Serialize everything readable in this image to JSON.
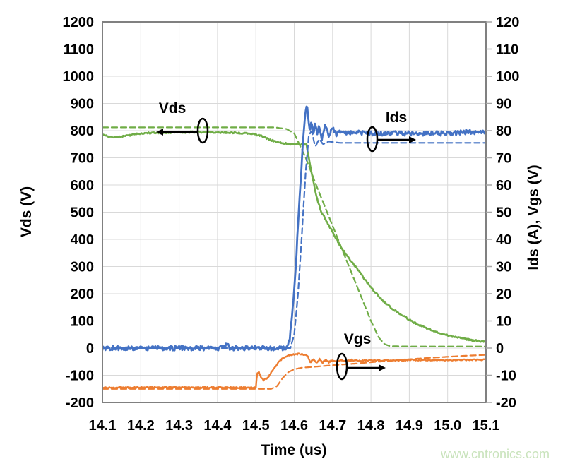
{
  "page": {
    "background": "#ffffff"
  },
  "watermark": {
    "text": "www.cntronics.com",
    "color": "#c9e3bc"
  },
  "style": {
    "grid_color": "#d9d9d9",
    "border_color": "#808080",
    "tick_color": "#a6a6a6",
    "text_color": "#000000",
    "vds_color": "#70AD47",
    "ids_color": "#4472C4",
    "vgs_color": "#ED7D31"
  },
  "chart_data": {
    "type": "line",
    "title": "",
    "xlabel": "Time (us)",
    "ylabel_left": "Vds (V)",
    "ylabel_right": "Ids (A), Vgs (V)",
    "x_range": [
      14.1,
      15.1
    ],
    "y_left_range": [
      -200,
      1200
    ],
    "y_right_range": [
      -20,
      120
    ],
    "grid": true,
    "x_ticks": [
      "14.1",
      "14.2",
      "14.3",
      "14.4",
      "14.5",
      "14.6",
      "14.7",
      "14.8",
      "14.9",
      "15.0",
      "15.1"
    ],
    "y_left_ticks": [
      "1200",
      "1100",
      "1000",
      "900",
      "800",
      "700",
      "600",
      "500",
      "400",
      "300",
      "200",
      "100",
      "0",
      "-100",
      "-200"
    ],
    "y_right_ticks": [
      "120",
      "110",
      "100",
      "90",
      "80",
      "70",
      "60",
      "50",
      "40",
      "30",
      "20",
      "10",
      "0",
      "-10",
      "-20"
    ],
    "series": [
      {
        "name": "Vds solid",
        "signal": "vds",
        "axis": "left",
        "style": "solid",
        "color": "#70AD47",
        "width": 2.6,
        "noise": 3,
        "points": [
          [
            14.1,
            786
          ],
          [
            14.12,
            776
          ],
          [
            14.14,
            776
          ],
          [
            14.17,
            783
          ],
          [
            14.2,
            790
          ],
          [
            14.25,
            793
          ],
          [
            14.3,
            794
          ],
          [
            14.35,
            795
          ],
          [
            14.4,
            794
          ],
          [
            14.44,
            792
          ],
          [
            14.48,
            790
          ],
          [
            14.51,
            783
          ],
          [
            14.53,
            770
          ],
          [
            14.55,
            760
          ],
          [
            14.57,
            753
          ],
          [
            14.6,
            750
          ],
          [
            14.62,
            751
          ],
          [
            14.632,
            748
          ],
          [
            14.638,
            700
          ],
          [
            14.644,
            655
          ],
          [
            14.652,
            598
          ],
          [
            14.66,
            548
          ],
          [
            14.67,
            505
          ],
          [
            14.686,
            462
          ],
          [
            14.7,
            428
          ],
          [
            14.72,
            375
          ],
          [
            14.748,
            320
          ],
          [
            14.77,
            280
          ],
          [
            14.787,
            247
          ],
          [
            14.81,
            207
          ],
          [
            14.833,
            171
          ],
          [
            14.86,
            140
          ],
          [
            14.886,
            117
          ],
          [
            14.91,
            95
          ],
          [
            14.938,
            78
          ],
          [
            14.96,
            64
          ],
          [
            14.987,
            52
          ],
          [
            15.01,
            44
          ],
          [
            15.04,
            35
          ],
          [
            15.07,
            28
          ],
          [
            15.1,
            24
          ]
        ]
      },
      {
        "name": "Vds dashed",
        "signal": "vds",
        "axis": "left",
        "style": "dashed",
        "color": "#70AD47",
        "width": 2.2,
        "noise": 0,
        "points": [
          [
            14.1,
            812
          ],
          [
            14.55,
            812
          ],
          [
            14.58,
            806
          ],
          [
            14.6,
            790
          ],
          [
            14.63,
            700
          ],
          [
            14.66,
            590
          ],
          [
            14.7,
            450
          ],
          [
            14.74,
            310
          ],
          [
            14.78,
            170
          ],
          [
            14.8,
            100
          ],
          [
            14.82,
            40
          ],
          [
            14.835,
            15
          ],
          [
            14.85,
            7
          ],
          [
            14.9,
            6
          ],
          [
            15.1,
            6
          ]
        ]
      },
      {
        "name": "Ids solid",
        "signal": "ids",
        "axis": "right",
        "style": "solid",
        "color": "#4472C4",
        "width": 2.8,
        "noise": 0.85,
        "points": [
          [
            14.1,
            0
          ],
          [
            14.42,
            0
          ],
          [
            14.425,
            2.5
          ],
          [
            14.43,
            0
          ],
          [
            14.58,
            0
          ],
          [
            14.588,
            3
          ],
          [
            14.595,
            12
          ],
          [
            14.603,
            28
          ],
          [
            14.61,
            45
          ],
          [
            14.617,
            62
          ],
          [
            14.624,
            78
          ],
          [
            14.63,
            88
          ],
          [
            14.633,
            90
          ],
          [
            14.637,
            84
          ],
          [
            14.64,
            80
          ],
          [
            14.645,
            83
          ],
          [
            14.65,
            79
          ],
          [
            14.655,
            83
          ],
          [
            14.66,
            78
          ],
          [
            14.665,
            82
          ],
          [
            14.672,
            77
          ],
          [
            14.68,
            82
          ],
          [
            14.69,
            78
          ],
          [
            14.7,
            81
          ],
          [
            14.71,
            78.5
          ],
          [
            14.72,
            80
          ],
          [
            14.73,
            79
          ],
          [
            14.75,
            79.5
          ],
          [
            14.8,
            79
          ],
          [
            14.9,
            79
          ],
          [
            15.0,
            79
          ],
          [
            15.05,
            79.5
          ],
          [
            15.1,
            79.5
          ]
        ]
      },
      {
        "name": "Ids dashed",
        "signal": "ids",
        "axis": "right",
        "style": "dashed",
        "color": "#4472C4",
        "width": 2.2,
        "noise": 0,
        "points": [
          [
            14.1,
            0
          ],
          [
            14.59,
            0
          ],
          [
            14.6,
            5
          ],
          [
            14.61,
            20
          ],
          [
            14.62,
            42
          ],
          [
            14.63,
            65
          ],
          [
            14.638,
            78
          ],
          [
            14.645,
            80
          ],
          [
            14.655,
            74
          ],
          [
            14.665,
            77
          ],
          [
            14.675,
            75
          ],
          [
            14.69,
            76
          ],
          [
            14.72,
            75.5
          ],
          [
            14.8,
            75.5
          ],
          [
            15.1,
            75.5
          ]
        ]
      },
      {
        "name": "Vgs solid",
        "signal": "vgs",
        "axis": "right",
        "style": "solid",
        "color": "#ED7D31",
        "width": 2.4,
        "noise": 0.25,
        "points": [
          [
            14.1,
            -14.5
          ],
          [
            14.5,
            -14.5
          ],
          [
            14.503,
            -9.2
          ],
          [
            14.508,
            -8.8
          ],
          [
            14.513,
            -10.8
          ],
          [
            14.52,
            -11.8
          ],
          [
            14.53,
            -11
          ],
          [
            14.545,
            -8
          ],
          [
            14.56,
            -5
          ],
          [
            14.575,
            -3.2
          ],
          [
            14.59,
            -2.5
          ],
          [
            14.61,
            -2.2
          ],
          [
            14.625,
            -2.3
          ],
          [
            14.635,
            -2.8
          ],
          [
            14.642,
            -5.3
          ],
          [
            14.65,
            -4
          ],
          [
            14.658,
            -5.4
          ],
          [
            14.666,
            -4.1
          ],
          [
            14.674,
            -5.3
          ],
          [
            14.682,
            -4.3
          ],
          [
            14.69,
            -5.2
          ],
          [
            14.7,
            -4.4
          ],
          [
            14.71,
            -5
          ],
          [
            14.72,
            -4.4
          ],
          [
            14.735,
            -4.9
          ],
          [
            14.75,
            -4.4
          ],
          [
            14.77,
            -4.7
          ],
          [
            14.8,
            -4.5
          ],
          [
            14.85,
            -4.5
          ],
          [
            14.9,
            -4.4
          ],
          [
            15.0,
            -4.4
          ],
          [
            15.1,
            -4.3
          ]
        ]
      },
      {
        "name": "Vgs dashed",
        "signal": "vgs",
        "axis": "right",
        "style": "dashed",
        "color": "#ED7D31",
        "width": 2.2,
        "noise": 0,
        "points": [
          [
            14.1,
            -15
          ],
          [
            14.54,
            -15
          ],
          [
            14.555,
            -14
          ],
          [
            14.57,
            -11
          ],
          [
            14.585,
            -8.8
          ],
          [
            14.6,
            -7.8
          ],
          [
            14.62,
            -7.2
          ],
          [
            14.65,
            -6.9
          ],
          [
            14.7,
            -6.3
          ],
          [
            14.75,
            -5.8
          ],
          [
            14.8,
            -5.2
          ],
          [
            14.85,
            -4.7
          ],
          [
            14.9,
            -4.1
          ],
          [
            14.95,
            -3.6
          ],
          [
            15.0,
            -3.2
          ],
          [
            15.05,
            -2.8
          ],
          [
            15.1,
            -2.5
          ]
        ]
      }
    ],
    "annotations": [
      {
        "id": "vds",
        "label": "Vds",
        "label_x": 244,
        "label_y": 160,
        "ellipse_cx": 287,
        "ellipse_cy": 185,
        "ellipse_rx": 7,
        "ellipse_ry": 17,
        "arrow_x1": 279,
        "arrow_x2": 229,
        "arrow_y": 187
      },
      {
        "id": "ids",
        "label": "Ids",
        "label_x": 561,
        "label_y": 173,
        "ellipse_cx": 527,
        "ellipse_cy": 197,
        "ellipse_rx": 7,
        "ellipse_ry": 17,
        "arrow_x1": 535,
        "arrow_x2": 581,
        "arrow_y": 198
      },
      {
        "id": "vgs",
        "label": "Vgs",
        "label_x": 506,
        "label_y": 487,
        "ellipse_cx": 484,
        "ellipse_cy": 519,
        "ellipse_rx": 7,
        "ellipse_ry": 18,
        "arrow_x1": 492,
        "arrow_x2": 538,
        "arrow_y": 521
      }
    ]
  }
}
